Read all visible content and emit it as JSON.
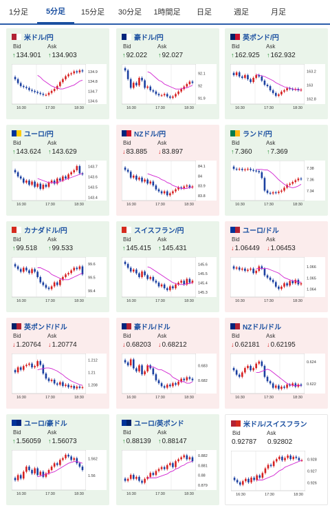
{
  "tabs": [
    {
      "label": "1分足",
      "active": false
    },
    {
      "label": "5分足",
      "active": true
    },
    {
      "label": "15分足",
      "active": false
    },
    {
      "label": "30分足",
      "active": false
    },
    {
      "label": "1時間足",
      "active": false
    },
    {
      "label": "日足",
      "active": false
    },
    {
      "label": "週足",
      "active": false
    },
    {
      "label": "月足",
      "active": false
    }
  ],
  "labels": {
    "bid": "Bid",
    "ask": "Ask"
  },
  "colors": {
    "up_bg": "#eaf4ea",
    "down_bg": "#fbecec",
    "candle_up": "#d62020",
    "candle_down": "#1a3fa0",
    "ma_line": "#d020d0",
    "arrow_up": "#1a8a2a",
    "arrow_down": "#d62020"
  },
  "cards": [
    {
      "name": "米ドル/円",
      "bid": "134.901",
      "ask": "134.903",
      "direction": "up",
      "flag": [
        "#b22234",
        "#ffffff"
      ],
      "chart_data": {
        "type": "line",
        "xticks": [
          "16:30",
          "17:30",
          "18:30"
        ],
        "yticks": [
          "134.9",
          "134.8",
          "134.7",
          "134.6"
        ],
        "ylim": [
          134.58,
          134.96
        ],
        "values": [
          134.82,
          134.78,
          134.75,
          134.74,
          134.73,
          134.71,
          134.7,
          134.69,
          134.68,
          134.67,
          134.66,
          134.66,
          134.68,
          134.7,
          134.72,
          134.75,
          134.79,
          134.82,
          134.85,
          134.87,
          134.88,
          134.9,
          134.89,
          134.91,
          134.9
        ],
        "ma": [
          134.86,
          134.84,
          134.81,
          134.79,
          134.77,
          134.75,
          134.74,
          134.73,
          134.72,
          134.72,
          134.73,
          134.74,
          134.75,
          134.76,
          134.78,
          134.8,
          134.81
        ]
      }
    },
    {
      "name": "豪ドル/円",
      "bid": "92.022",
      "ask": "92.027",
      "direction": "up",
      "flag": [
        "#00247d",
        "#ffffff"
      ],
      "chart_data": {
        "type": "line",
        "xticks": [
          "16:30",
          "17:30",
          "18:30"
        ],
        "yticks": [
          "92.1",
          "92",
          "91.9"
        ],
        "ylim": [
          91.86,
          92.16
        ],
        "values": [
          92.12,
          92.05,
          91.98,
          92.02,
          92.0,
          92.06,
          92.04,
          91.98,
          91.99,
          91.96,
          91.95,
          91.93,
          91.92,
          91.92,
          91.93,
          91.91,
          91.9,
          91.91,
          91.93,
          91.95,
          91.97,
          91.99,
          92.01,
          92.03,
          92.02
        ],
        "ma": [
          92.11,
          92.1,
          92.08,
          92.06,
          92.04,
          92.03,
          92.01,
          92.0,
          91.99,
          91.98,
          91.97,
          91.97,
          91.97,
          91.98,
          91.98,
          91.99,
          92.0
        ]
      }
    },
    {
      "name": "英ポンド/円",
      "bid": "162.925",
      "ask": "162.932",
      "direction": "up",
      "flag": [
        "#012169",
        "#c8102e"
      ],
      "chart_data": {
        "type": "line",
        "xticks": [
          "16:30",
          "17:30",
          "18:30"
        ],
        "yticks": [
          "163.2",
          "163",
          "162.8"
        ],
        "ylim": [
          162.74,
          163.28
        ],
        "values": [
          163.14,
          163.18,
          163.12,
          163.1,
          163.14,
          163.08,
          163.04,
          163.1,
          163.14,
          163.12,
          163.06,
          163.0,
          162.98,
          162.92,
          162.88,
          162.84,
          162.86,
          162.9,
          162.92,
          162.95,
          162.94,
          162.93,
          162.94,
          162.92,
          162.93
        ],
        "ma": [
          163.15,
          163.14,
          163.13,
          163.12,
          163.1,
          163.08,
          163.06,
          163.03,
          163.01,
          162.99,
          162.97,
          162.96,
          162.95,
          162.94,
          162.93,
          162.93,
          162.92
        ]
      }
    },
    {
      "name": "ユーロ/円",
      "bid": "143.624",
      "ask": "143.629",
      "direction": "up",
      "flag": [
        "#003399",
        "#ffcc00"
      ],
      "chart_data": {
        "type": "line",
        "xticks": [
          "16:30",
          "17:30",
          "18:30"
        ],
        "yticks": [
          "143.7",
          "143.6",
          "143.5",
          "143.4"
        ],
        "ylim": [
          143.38,
          143.74
        ],
        "values": [
          143.64,
          143.6,
          143.58,
          143.54,
          143.56,
          143.52,
          143.55,
          143.5,
          143.53,
          143.48,
          143.52,
          143.5,
          143.54,
          143.56,
          143.53,
          143.58,
          143.56,
          143.6,
          143.58,
          143.62,
          143.64,
          143.66,
          143.7,
          143.63,
          143.62
        ],
        "ma": [
          143.58,
          143.57,
          143.56,
          143.55,
          143.54,
          143.54,
          143.54,
          143.54,
          143.55,
          143.56,
          143.57,
          143.58,
          143.59,
          143.6,
          143.61,
          143.62,
          143.63
        ]
      }
    },
    {
      "name": "NZドル/円",
      "bid": "83.885",
      "ask": "83.897",
      "direction": "down",
      "flag": [
        "#00247d",
        "#cc142b"
      ],
      "chart_data": {
        "type": "line",
        "xticks": [
          "16:30",
          "17:30",
          "18:30"
        ],
        "yticks": [
          "84.1",
          "84",
          "83.9",
          "83.8"
        ],
        "ylim": [
          83.76,
          84.14
        ],
        "values": [
          84.06,
          84.04,
          83.98,
          84.0,
          83.96,
          83.98,
          83.94,
          83.96,
          83.92,
          83.94,
          83.9,
          83.86,
          83.84,
          83.82,
          83.84,
          83.8,
          83.82,
          83.84,
          83.86,
          83.88,
          83.87,
          83.89,
          83.9,
          83.88,
          83.89
        ],
        "ma": [
          84.02,
          84.01,
          84.0,
          83.99,
          83.98,
          83.96,
          83.95,
          83.93,
          83.92,
          83.9,
          83.89,
          83.88,
          83.87,
          83.87,
          83.87,
          83.88,
          83.88
        ]
      }
    },
    {
      "name": "ランド/円",
      "bid": "7.360",
      "ask": "7.369",
      "direction": "up",
      "flag": [
        "#007a4d",
        "#ffb612"
      ],
      "chart_data": {
        "type": "line",
        "xticks": [
          "16:30",
          "17:30",
          "18:30"
        ],
        "yticks": [
          "7.38",
          "7.36",
          "7.34"
        ],
        "ylim": [
          7.325,
          7.39
        ],
        "values": [
          7.378,
          7.377,
          7.378,
          7.376,
          7.377,
          7.378,
          7.376,
          7.375,
          7.374,
          7.372,
          7.362,
          7.34,
          7.336,
          7.335,
          7.337,
          7.336,
          7.338,
          7.34,
          7.345,
          7.35,
          7.352,
          7.355,
          7.358,
          7.361,
          7.36
        ],
        "ma": [
          7.377,
          7.377,
          7.377,
          7.376,
          7.376,
          7.373,
          7.369,
          7.364,
          7.359,
          7.355,
          7.351,
          7.348,
          7.346,
          7.345,
          7.346,
          7.348,
          7.351
        ]
      }
    },
    {
      "name": "カナダドル/円",
      "bid": "99.518",
      "ask": "99.533",
      "direction": "up",
      "flag": [
        "#d52b1e",
        "#ffffff"
      ],
      "chart_data": {
        "type": "line",
        "xticks": [
          "16:30",
          "17:30",
          "18:30"
        ],
        "yticks": [
          "99.6",
          "99.5",
          "99.4"
        ],
        "ylim": [
          99.36,
          99.64
        ],
        "values": [
          99.58,
          99.56,
          99.54,
          99.57,
          99.55,
          99.53,
          99.56,
          99.54,
          99.5,
          99.46,
          99.44,
          99.42,
          99.41,
          99.43,
          99.46,
          99.44,
          99.48,
          99.5,
          99.52,
          99.53,
          99.55,
          99.57,
          99.56,
          99.58,
          99.52
        ],
        "ma": [
          99.57,
          99.57,
          99.56,
          99.55,
          99.54,
          99.52,
          99.51,
          99.5,
          99.49,
          99.48,
          99.48,
          99.48,
          99.49,
          99.5,
          99.51,
          99.52,
          99.53
        ]
      }
    },
    {
      "name": "スイスフラン/円",
      "bid": "145.415",
      "ask": "145.431",
      "direction": "up",
      "flag": [
        "#d52b1e",
        "#ffffff"
      ],
      "chart_data": {
        "type": "line",
        "xticks": [
          "16:30",
          "17:30",
          "18:30"
        ],
        "yticks": [
          "145.6",
          "145.5",
          "145.4",
          "145.3"
        ],
        "ylim": [
          145.26,
          145.66
        ],
        "values": [
          145.6,
          145.56,
          145.52,
          145.54,
          145.5,
          145.46,
          145.52,
          145.48,
          145.44,
          145.46,
          145.42,
          145.4,
          145.36,
          145.38,
          145.34,
          145.32,
          145.36,
          145.34,
          145.38,
          145.4,
          145.42,
          145.38,
          145.44,
          145.4,
          145.42
        ],
        "ma": [
          145.57,
          145.56,
          145.54,
          145.52,
          145.5,
          145.48,
          145.46,
          145.44,
          145.42,
          145.4,
          145.39,
          145.38,
          145.38,
          145.38,
          145.39,
          145.39,
          145.4
        ]
      }
    },
    {
      "name": "ユーロ/ドル",
      "bid": "1.06449",
      "ask": "1.06453",
      "direction": "down",
      "flag": [
        "#003399",
        "#b22234"
      ],
      "chart_data": {
        "type": "line",
        "xticks": [
          "16:30",
          "17:30",
          "18:30"
        ],
        "yticks": [
          "1.066",
          "1.065",
          "1.064"
        ],
        "ylim": [
          1.0634,
          1.0667
        ],
        "values": [
          1.0658,
          1.0659,
          1.0657,
          1.0658,
          1.0656,
          1.0657,
          1.0658,
          1.0654,
          1.0656,
          1.066,
          1.0658,
          1.0652,
          1.065,
          1.0648,
          1.0646,
          1.0642,
          1.064,
          1.0642,
          1.0645,
          1.0643,
          1.0647,
          1.0645,
          1.0648,
          1.0644,
          1.0645
        ],
        "ma": [
          1.0658,
          1.0658,
          1.0658,
          1.0658,
          1.0658,
          1.0657,
          1.0656,
          1.0655,
          1.0654,
          1.0652,
          1.065,
          1.0649,
          1.0648,
          1.0647,
          1.0647,
          1.0646,
          1.0646
        ]
      }
    },
    {
      "name": "英ポンド/ドル",
      "bid": "1.20764",
      "ask": "1.20774",
      "direction": "down",
      "flag": [
        "#012169",
        "#b22234"
      ],
      "chart_data": {
        "type": "line",
        "xticks": [
          "16:30",
          "17:30",
          "18:30"
        ],
        "yticks": [
          "1.212",
          "1.21",
          "1.208"
        ],
        "ylim": [
          1.2068,
          1.2128
        ],
        "values": [
          1.21,
          1.2108,
          1.2104,
          1.211,
          1.2112,
          1.2114,
          1.2108,
          1.211,
          1.2118,
          1.2112,
          1.2098,
          1.209,
          1.2086,
          1.2088,
          1.2082,
          1.208,
          1.2084,
          1.2078,
          1.208,
          1.2076,
          1.2078,
          1.2074,
          1.2077,
          1.2075,
          1.2076
        ],
        "ma": [
          1.2104,
          1.2105,
          1.2106,
          1.2107,
          1.2107,
          1.2106,
          1.2104,
          1.2102,
          1.2099,
          1.2096,
          1.2092,
          1.2089,
          1.2086,
          1.2084,
          1.2082,
          1.208,
          1.2079
        ]
      }
    },
    {
      "name": "豪ドル/ドル",
      "bid": "0.68203",
      "ask": "0.68212",
      "direction": "down",
      "flag": [
        "#00247d",
        "#b22234"
      ],
      "chart_data": {
        "type": "line",
        "xticks": [
          "16:30",
          "17:30",
          "18:30"
        ],
        "yticks": [
          "0.683",
          "0.682"
        ],
        "ylim": [
          0.6812,
          0.6837
        ],
        "values": [
          0.6832,
          0.683,
          0.6834,
          0.6828,
          0.6826,
          0.683,
          0.6824,
          0.6826,
          0.683,
          0.6828,
          0.6824,
          0.682,
          0.6818,
          0.6816,
          0.6815,
          0.6817,
          0.6816,
          0.6818,
          0.6817,
          0.6819,
          0.6821,
          0.682,
          0.6822,
          0.6821,
          0.682
        ],
        "ma": [
          0.683,
          0.6829,
          0.6829,
          0.6828,
          0.6827,
          0.6827,
          0.6826,
          0.6825,
          0.6824,
          0.6822,
          0.6821,
          0.682,
          0.6819,
          0.6819,
          0.6818,
          0.6818,
          0.6819
        ]
      }
    },
    {
      "name": "NZドル/ドル",
      "bid": "0.62181",
      "ask": "0.62195",
      "direction": "down",
      "flag": [
        "#00247d",
        "#b22234"
      ],
      "chart_data": {
        "type": "line",
        "xticks": [
          "16:30",
          "17:30",
          "18:30"
        ],
        "yticks": [
          "0.624",
          "0.622"
        ],
        "ylim": [
          0.6212,
          0.6246
        ],
        "values": [
          0.6232,
          0.6228,
          0.6226,
          0.623,
          0.6234,
          0.6236,
          0.6232,
          0.6234,
          0.6238,
          0.624,
          0.6236,
          0.6226,
          0.6222,
          0.622,
          0.6216,
          0.6218,
          0.6215,
          0.6217,
          0.6216,
          0.6219,
          0.6218,
          0.622,
          0.6217,
          0.6219,
          0.6218
        ],
        "ma": [
          0.623,
          0.623,
          0.6231,
          0.6232,
          0.6233,
          0.6232,
          0.623,
          0.6228,
          0.6226,
          0.6224,
          0.6222,
          0.622,
          0.6219,
          0.6218,
          0.6218,
          0.6218,
          0.6218
        ]
      }
    },
    {
      "name": "ユーロ/豪ドル",
      "bid": "1.56059",
      "ask": "1.56073",
      "direction": "up",
      "flag": [
        "#003399",
        "#00247d"
      ],
      "chart_data": {
        "type": "line",
        "xticks": [
          "16:30",
          "17:30",
          "18:30"
        ],
        "yticks": [
          "1.562",
          "1.56"
        ],
        "ylim": [
          1.5584,
          1.5628
        ],
        "values": [
          1.5594,
          1.56,
          1.5596,
          1.5604,
          1.561,
          1.5606,
          1.5602,
          1.5608,
          1.56,
          1.5604,
          1.5598,
          1.5602,
          1.5606,
          1.561,
          1.5614,
          1.5612,
          1.5618,
          1.562,
          1.5624,
          1.5622,
          1.5618,
          1.562,
          1.5614,
          1.561,
          1.5606
        ],
        "ma": [
          1.5598,
          1.5599,
          1.56,
          1.5601,
          1.5602,
          1.5603,
          1.5604,
          1.5606,
          1.5608,
          1.561,
          1.5612,
          1.5614,
          1.5615,
          1.5616,
          1.5616,
          1.5615,
          1.5614
        ]
      }
    },
    {
      "name": "ユーロ/英ポンド",
      "bid": "0.88139",
      "ask": "0.88147",
      "direction": "up",
      "flag": [
        "#003399",
        "#012169"
      ],
      "chart_data": {
        "type": "line",
        "xticks": [
          "16:30",
          "17:30",
          "18:30"
        ],
        "yticks": [
          "0.882",
          "0.881",
          "0.88",
          "0.879"
        ],
        "ylim": [
          0.8786,
          0.8824
        ],
        "values": [
          0.8794,
          0.8796,
          0.88,
          0.8796,
          0.8798,
          0.8794,
          0.8792,
          0.8796,
          0.8798,
          0.8802,
          0.88,
          0.8804,
          0.8806,
          0.8808,
          0.8806,
          0.881,
          0.8812,
          0.8808,
          0.8814,
          0.8816,
          0.8818,
          0.882,
          0.8816,
          0.8818,
          0.8814
        ],
        "ma": [
          0.8797,
          0.8797,
          0.8797,
          0.8797,
          0.8798,
          0.8799,
          0.88,
          0.8801,
          0.8803,
          0.8804,
          0.8806,
          0.8807,
          0.8809,
          0.881,
          0.8812,
          0.8813,
          0.8814
        ]
      }
    },
    {
      "name": "米ドル/スイスフラン",
      "bid": "0.92787",
      "ask": "0.92802",
      "direction": "none",
      "flag": [
        "#b22234",
        "#d52b1e"
      ],
      "chart_data": {
        "type": "line",
        "xticks": [
          "16:30",
          "17:30",
          "18:30"
        ],
        "yticks": [
          "0.928",
          "0.927",
          "0.926"
        ],
        "ylim": [
          0.9254,
          0.9286
        ],
        "values": [
          0.9262,
          0.926,
          0.9258,
          0.9261,
          0.9263,
          0.926,
          0.9264,
          0.9262,
          0.9266,
          0.9264,
          0.9268,
          0.9272,
          0.9275,
          0.9274,
          0.9278,
          0.928,
          0.9282,
          0.9279,
          0.9281,
          0.9283,
          0.928,
          0.9282,
          0.9281,
          0.9279,
          0.9279
        ],
        "ma": [
          0.9262,
          0.9262,
          0.9262,
          0.9263,
          0.9264,
          0.9265,
          0.9266,
          0.9268,
          0.927,
          0.9271,
          0.9273,
          0.9274,
          0.9275,
          0.9276,
          0.9277,
          0.9278,
          0.9279
        ]
      }
    }
  ]
}
